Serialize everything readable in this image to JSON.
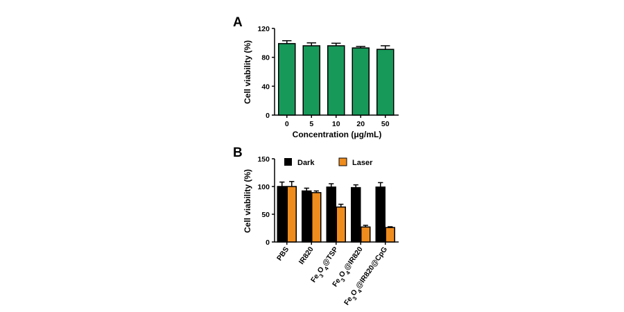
{
  "chart_data": [
    {
      "panel": "A",
      "type": "bar",
      "ylabel": "Cell viability (%)",
      "xlabel": "Concentration (μg/mL)",
      "ylim": [
        0,
        120
      ],
      "yticks": [
        0,
        40,
        80,
        120
      ],
      "categories": [
        "0",
        "5",
        "10",
        "20",
        "50"
      ],
      "series": [
        {
          "values": [
            99,
            96,
            96,
            93,
            91
          ],
          "errors": [
            4,
            4,
            3.5,
            2,
            5
          ],
          "color": "#17995a"
        }
      ]
    },
    {
      "panel": "B",
      "type": "bar",
      "ylabel": "Cell viability (%)",
      "xlabel": "",
      "ylim": [
        0,
        150
      ],
      "yticks": [
        0,
        50,
        100,
        150
      ],
      "categories": [
        "PBS",
        "IR820",
        "Fe3O4@TSP",
        "Fe3O4@IR820",
        "Fe3O4@IR820@CpG"
      ],
      "legend": "top",
      "series": [
        {
          "name": "Dark",
          "values": [
            100,
            92,
            99,
            98,
            99
          ],
          "errors": [
            8,
            5,
            6,
            5,
            8
          ],
          "color": "#000000"
        },
        {
          "name": "Laser",
          "values": [
            100,
            89,
            63,
            27,
            26
          ],
          "errors": [
            9,
            3,
            5,
            3,
            1.5
          ],
          "color": "#ef8c1e"
        }
      ]
    }
  ]
}
